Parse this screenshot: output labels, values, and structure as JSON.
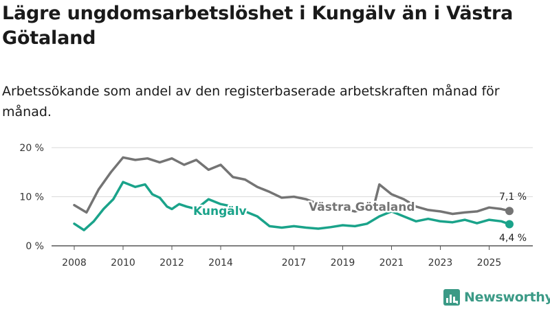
{
  "title": "Lägre ungdomsarbetslöshet i Kungälv än i Västra Götaland",
  "subtitle": "Arbetssökande som andel av den registerbaserade arbetskraften månad för månad.",
  "brand": "Newsworthy",
  "colors": {
    "kungalv": "#1aa38a",
    "vastra": "#747474",
    "grid": "#d9d9d9",
    "axis": "#555555"
  },
  "chart_data": {
    "type": "line",
    "title": "Lägre ungdomsarbetslöshet i Kungälv än i Västra Götaland",
    "subtitle": "Arbetssökande som andel av den registerbaserade arbetskraften månad för månad.",
    "xlabel": "",
    "ylabel": "",
    "xlim": [
      2008,
      2026
    ],
    "ylim": [
      0,
      20
    ],
    "yticks": [
      {
        "v": 0,
        "label": "0 %"
      },
      {
        "v": 10,
        "label": "10 %"
      },
      {
        "v": 20,
        "label": "20 %"
      }
    ],
    "xticks": [
      "2008",
      "2010",
      "2012",
      "2014",
      "2017",
      "2019",
      "2021",
      "2023",
      "2025"
    ],
    "xtick_values": [
      2008,
      2010,
      2012,
      2014,
      2017,
      2019,
      2021,
      2023,
      2025
    ],
    "grid": true,
    "series": [
      {
        "name": "Västra Götaland",
        "label": "Västra Götaland",
        "end_label": "7,1 %",
        "x": [
          2008.0,
          2008.5,
          2009.0,
          2009.5,
          2010.0,
          2010.5,
          2011.0,
          2011.5,
          2012.0,
          2012.5,
          2013.0,
          2013.5,
          2014.0,
          2014.5,
          2015.0,
          2015.5,
          2016.0,
          2016.5,
          2017.0,
          2017.5,
          2018.0,
          2018.5,
          2019.0,
          2019.5,
          2020.0,
          2020.3,
          2020.5,
          2021.0,
          2021.5,
          2022.0,
          2022.5,
          2023.0,
          2023.5,
          2024.0,
          2024.5,
          2025.0,
          2025.5,
          2025.83
        ],
        "values": [
          8.3,
          6.8,
          11.5,
          15.0,
          18.0,
          17.5,
          17.8,
          17.0,
          17.8,
          16.5,
          17.5,
          15.5,
          16.5,
          14.0,
          13.5,
          12.0,
          11.0,
          9.8,
          10.0,
          9.5,
          8.5,
          8.0,
          7.5,
          7.0,
          7.6,
          8.5,
          12.5,
          10.5,
          9.5,
          8.0,
          7.3,
          7.0,
          6.5,
          6.8,
          7.0,
          7.8,
          7.5,
          7.1
        ]
      },
      {
        "name": "Kungälv",
        "label": "Kungälv",
        "end_label": "4,4 %",
        "x": [
          2008.0,
          2008.4,
          2008.8,
          2009.2,
          2009.6,
          2010.0,
          2010.5,
          2010.9,
          2011.2,
          2011.5,
          2011.8,
          2012.0,
          2012.3,
          2012.6,
          2013.0,
          2013.5,
          2014.0,
          2014.5,
          2015.0,
          2015.5,
          2016.0,
          2016.5,
          2017.0,
          2017.5,
          2018.0,
          2018.5,
          2019.0,
          2019.5,
          2020.0,
          2020.5,
          2021.0,
          2021.5,
          2022.0,
          2022.5,
          2023.0,
          2023.5,
          2024.0,
          2024.5,
          2025.0,
          2025.5,
          2025.83
        ],
        "values": [
          4.5,
          3.2,
          5.0,
          7.5,
          9.5,
          13.0,
          12.0,
          12.5,
          10.5,
          9.8,
          8.0,
          7.5,
          8.5,
          8.0,
          7.5,
          9.5,
          8.5,
          8.0,
          7.0,
          6.0,
          4.0,
          3.7,
          4.0,
          3.7,
          3.5,
          3.8,
          4.2,
          4.0,
          4.5,
          6.0,
          7.0,
          6.0,
          5.0,
          5.5,
          5.0,
          4.8,
          5.3,
          4.6,
          5.3,
          5.0,
          4.4
        ]
      }
    ]
  }
}
